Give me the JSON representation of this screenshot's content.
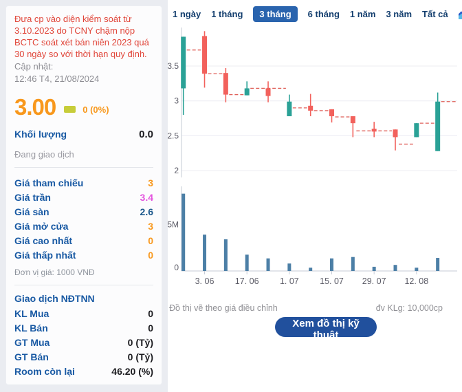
{
  "sidebar": {
    "warning": "Đưa cp vào diện kiểm soát từ 3.10.2023 do TCNY chậm nộp BCTC soát xét bán niên 2023 quá 30 ngày so với thời hạn quy định.",
    "updated_label": "Cập nhật:",
    "updated_value": "12:46 T4, 21/08/2024",
    "price": "3.00",
    "change": "0 (0%)",
    "volume_label": "Khối lượng",
    "volume_value": "0.0",
    "session_status": "Đang giao dịch",
    "price_rows": [
      {
        "label": "Giá tham chiếu",
        "value": "3",
        "color": "#f8981d"
      },
      {
        "label": "Giá trần",
        "value": "3.4",
        "color": "#e454de"
      },
      {
        "label": "Giá sàn",
        "value": "2.6",
        "color": "#1e5a8d"
      },
      {
        "label": "Giá mở cửa",
        "value": "3",
        "color": "#f8981d"
      },
      {
        "label": "Giá cao nhất",
        "value": "0",
        "color": "#f8981d"
      },
      {
        "label": "Giá thấp nhất",
        "value": "0",
        "color": "#f8981d"
      }
    ],
    "price_unit": "Đơn vị giá: 1000 VNĐ",
    "foreign_header": "Giao dịch NĐTNN",
    "foreign_rows": [
      {
        "label": "KL Mua",
        "value": "0"
      },
      {
        "label": "KL Bán",
        "value": "0"
      },
      {
        "label": "GT Mua",
        "value": "0 (Tỷ)"
      },
      {
        "label": "GT Bán",
        "value": "0 (Tỷ)"
      },
      {
        "label": "Room còn lại",
        "value": "46.20 (%)"
      }
    ]
  },
  "tabs": {
    "items": [
      {
        "label": "1 ngày",
        "active": false
      },
      {
        "label": "1 tháng",
        "active": false
      },
      {
        "label": "3 tháng",
        "active": true
      },
      {
        "label": "6 tháng",
        "active": false
      },
      {
        "label": "1 năm",
        "active": false
      },
      {
        "label": "3 năm",
        "active": false
      },
      {
        "label": "Tất cả",
        "active": false
      }
    ],
    "chart_icon": "area-chart-icon"
  },
  "footer": {
    "left_note": "Đồ thị vẽ theo giá điều chỉnh",
    "right_note": "đv KLg: 10,000cp",
    "button_label": "Xem đồ thị kỹ thuật"
  },
  "chart_data": {
    "type": "candlestick+volume",
    "title": "",
    "price_axis": {
      "tick_values": [
        3.5,
        3,
        2.5,
        2
      ],
      "tick_labels": [
        "3.5",
        "3",
        "2.5",
        "2"
      ],
      "range": [
        2.05,
        4.05
      ],
      "grid": true
    },
    "volume_axis": {
      "tick_labels": [
        "5M",
        "0"
      ],
      "tick_values_m": [
        5,
        0
      ]
    },
    "x_labels": [
      "3. 06",
      "17. 06",
      "1. 07",
      "15. 07",
      "29. 07",
      "12. 08"
    ],
    "x_label_candle_idx": [
      1,
      3,
      5,
      7,
      9,
      11
    ],
    "candles": [
      {
        "dir": "up",
        "body": [
          3.18,
          3.92
        ],
        "wick": [
          2.8,
          3.92
        ]
      },
      {
        "dir": "down",
        "body": [
          3.39,
          3.93
        ],
        "wick": [
          3.19,
          4.0
        ]
      },
      {
        "dir": "down",
        "body": [
          3.09,
          3.4
        ],
        "wick": [
          2.98,
          3.47
        ]
      },
      {
        "dir": "up",
        "body": [
          3.08,
          3.18
        ],
        "wick": [
          3.08,
          3.28
        ]
      },
      {
        "dir": "down",
        "body": [
          3.07,
          3.18
        ],
        "wick": [
          2.98,
          3.28
        ]
      },
      {
        "dir": "up",
        "body": [
          2.78,
          2.99
        ],
        "wick": [
          2.78,
          3.09
        ]
      },
      {
        "dir": "down",
        "body": [
          2.86,
          2.93
        ],
        "wick": [
          2.78,
          3.1
        ]
      },
      {
        "dir": "down",
        "body": [
          2.78,
          2.88
        ],
        "wick": [
          2.69,
          2.88
        ]
      },
      {
        "dir": "down",
        "body": [
          2.68,
          2.78
        ],
        "wick": [
          2.48,
          2.78
        ]
      },
      {
        "dir": "down",
        "body": [
          2.56,
          2.6
        ],
        "wick": [
          2.48,
          2.7
        ]
      },
      {
        "dir": "down",
        "body": [
          2.48,
          2.59
        ],
        "wick": [
          2.29,
          2.59
        ]
      },
      {
        "dir": "up",
        "body": [
          2.48,
          2.68
        ],
        "wick": [
          2.48,
          2.68
        ]
      },
      {
        "dir": "up",
        "body": [
          2.28,
          2.99
        ],
        "wick": [
          2.28,
          3.12
        ]
      }
    ],
    "dashed_segments": [
      {
        "from": 0,
        "to": 1,
        "value": 3.73
      },
      {
        "from": 1,
        "to": 2,
        "value": 3.39
      },
      {
        "from": 2,
        "to": 3,
        "value": 3.09
      },
      {
        "from": 3,
        "to": 5,
        "value": 3.18
      },
      {
        "from": 5,
        "to": 6,
        "value": 2.9
      },
      {
        "from": 6,
        "to": 7,
        "value": 2.86
      },
      {
        "from": 7,
        "to": 8,
        "value": 2.77
      },
      {
        "from": 8,
        "to": 10,
        "value": 2.57
      },
      {
        "from": 10,
        "to": 11,
        "value": 2.38
      },
      {
        "from": 11,
        "to": 12,
        "value": 2.68
      },
      {
        "from": 12,
        "to": "end",
        "value": 2.99
      }
    ],
    "volumes_millions": [
      8.3,
      3.9,
      3.4,
      1.75,
      1.35,
      0.8,
      0.35,
      1.35,
      1.5,
      0.45,
      0.65,
      0.35,
      1.4
    ],
    "colors": {
      "up": "#2aa196",
      "down": "#f2615c",
      "dashed": "#df5f58",
      "volume_bar": "#4c7fa6",
      "grid": "#ececf2",
      "axis": "#c6cbd6",
      "tick_text": "#5b5b66"
    }
  }
}
